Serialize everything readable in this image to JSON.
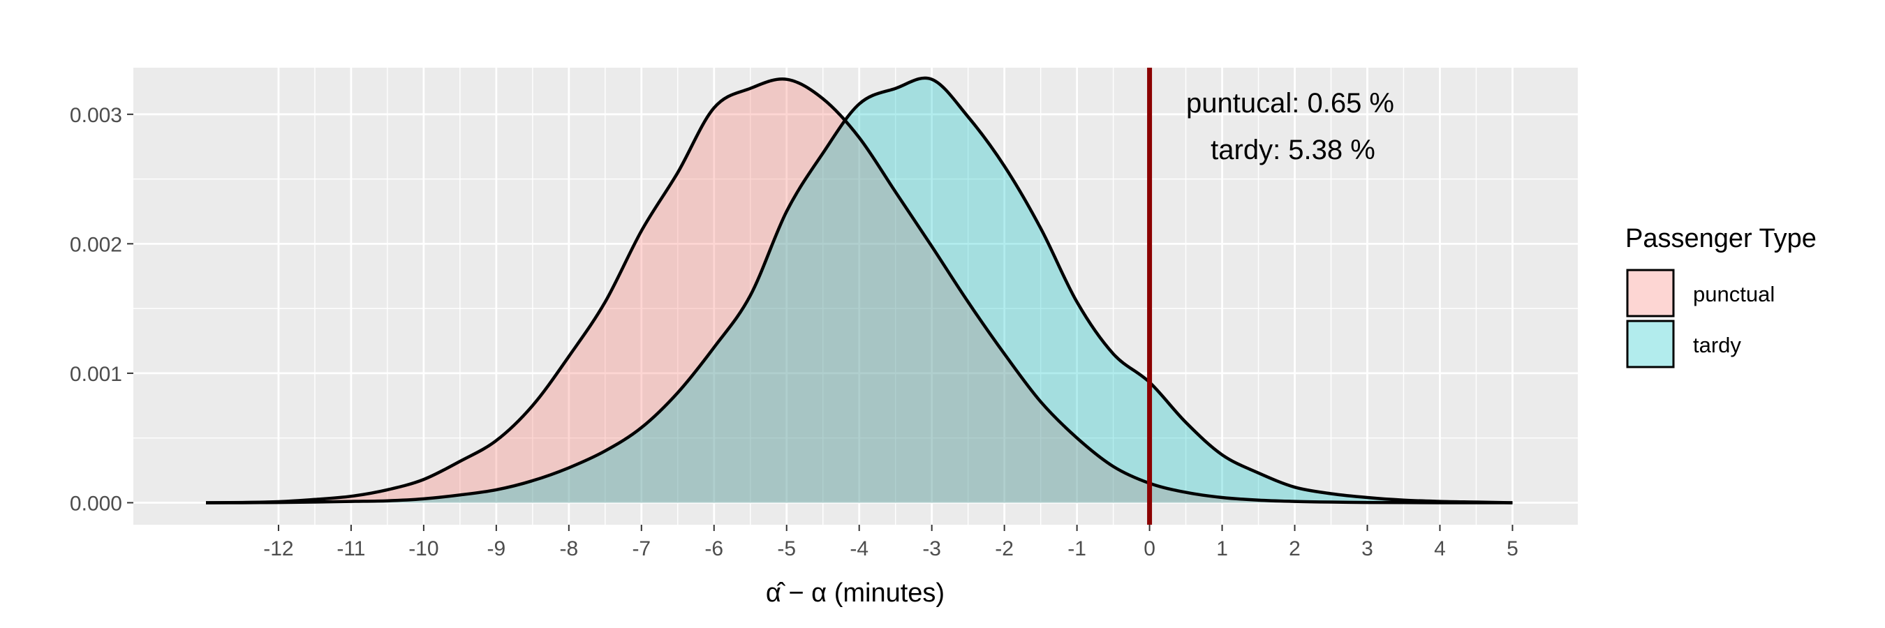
{
  "chart_data": {
    "type": "area",
    "xlabel": "α̂ − α (minutes)",
    "ylabel": "",
    "xlim": [
      -14.0,
      5.9
    ],
    "ylim": [
      -0.00017,
      0.00336
    ],
    "x_ticks": [
      -12,
      -11,
      -10,
      -9,
      -8,
      -7,
      -6,
      -5,
      -4,
      -3,
      -2,
      -1,
      0,
      1,
      2,
      3,
      4,
      5
    ],
    "y_ticks": [
      0.0,
      0.001,
      0.002,
      0.003
    ],
    "y_tick_labels": [
      "0.000",
      "0.001",
      "0.002",
      "0.003"
    ],
    "grid": true,
    "vline": {
      "x": 0,
      "color": "#8b0000"
    },
    "annotations": [
      "puntucal: 0.65 %",
      "tardy: 5.38 %"
    ],
    "legend": {
      "title": "Passenger Type",
      "position": "right"
    },
    "series": [
      {
        "name": "punctual",
        "color": "#f8766d",
        "x": [
          -13.0,
          -12.5,
          -12.0,
          -11.5,
          -11.0,
          -10.5,
          -10.0,
          -9.5,
          -9.0,
          -8.5,
          -8.0,
          -7.5,
          -7.0,
          -6.5,
          -6.0,
          -5.5,
          -5.0,
          -4.5,
          -4.0,
          -3.5,
          -3.0,
          -2.5,
          -2.0,
          -1.5,
          -1.0,
          -0.5,
          0.0,
          0.5,
          1.0,
          1.5,
          2.0,
          2.5,
          3.0,
          3.5,
          4.0,
          4.5,
          5.0
        ],
        "y": [
          0.0,
          2e-06,
          8e-06,
          2.5e-05,
          5e-05,
          0.0001,
          0.00018,
          0.00032,
          0.00048,
          0.00075,
          0.00113,
          0.00155,
          0.0021,
          0.00255,
          0.00305,
          0.0032,
          0.00327,
          0.00312,
          0.00282,
          0.0024,
          0.00198,
          0.00155,
          0.00115,
          0.00078,
          0.0005,
          0.00028,
          0.00015,
          8e-05,
          4e-05,
          2e-05,
          1e-05,
          5e-06,
          2e-06,
          1e-06,
          0.0,
          0.0,
          0.0
        ]
      },
      {
        "name": "tardy",
        "color": "#00bfc4",
        "x": [
          -13.0,
          -12.5,
          -12.0,
          -11.5,
          -11.0,
          -10.5,
          -10.0,
          -9.5,
          -9.0,
          -8.5,
          -8.0,
          -7.5,
          -7.0,
          -6.5,
          -6.0,
          -5.5,
          -5.0,
          -4.5,
          -4.0,
          -3.5,
          -3.0,
          -2.5,
          -2.0,
          -1.5,
          -1.0,
          -0.5,
          0.0,
          0.5,
          1.0,
          1.5,
          2.0,
          2.5,
          3.0,
          3.5,
          4.0,
          4.5,
          5.0
        ],
        "y": [
          0.0,
          0.0,
          2e-06,
          5e-06,
          1e-05,
          1.5e-05,
          3e-05,
          6e-05,
          0.0001,
          0.00017,
          0.00027,
          0.0004,
          0.00058,
          0.00085,
          0.0012,
          0.0016,
          0.00225,
          0.0027,
          0.00308,
          0.0032,
          0.00327,
          0.00298,
          0.0026,
          0.00212,
          0.00155,
          0.00115,
          0.00093,
          0.00062,
          0.00037,
          0.00023,
          0.00012,
          7e-05,
          4e-05,
          2e-05,
          1e-05,
          5e-06,
          0.0
        ]
      }
    ]
  }
}
